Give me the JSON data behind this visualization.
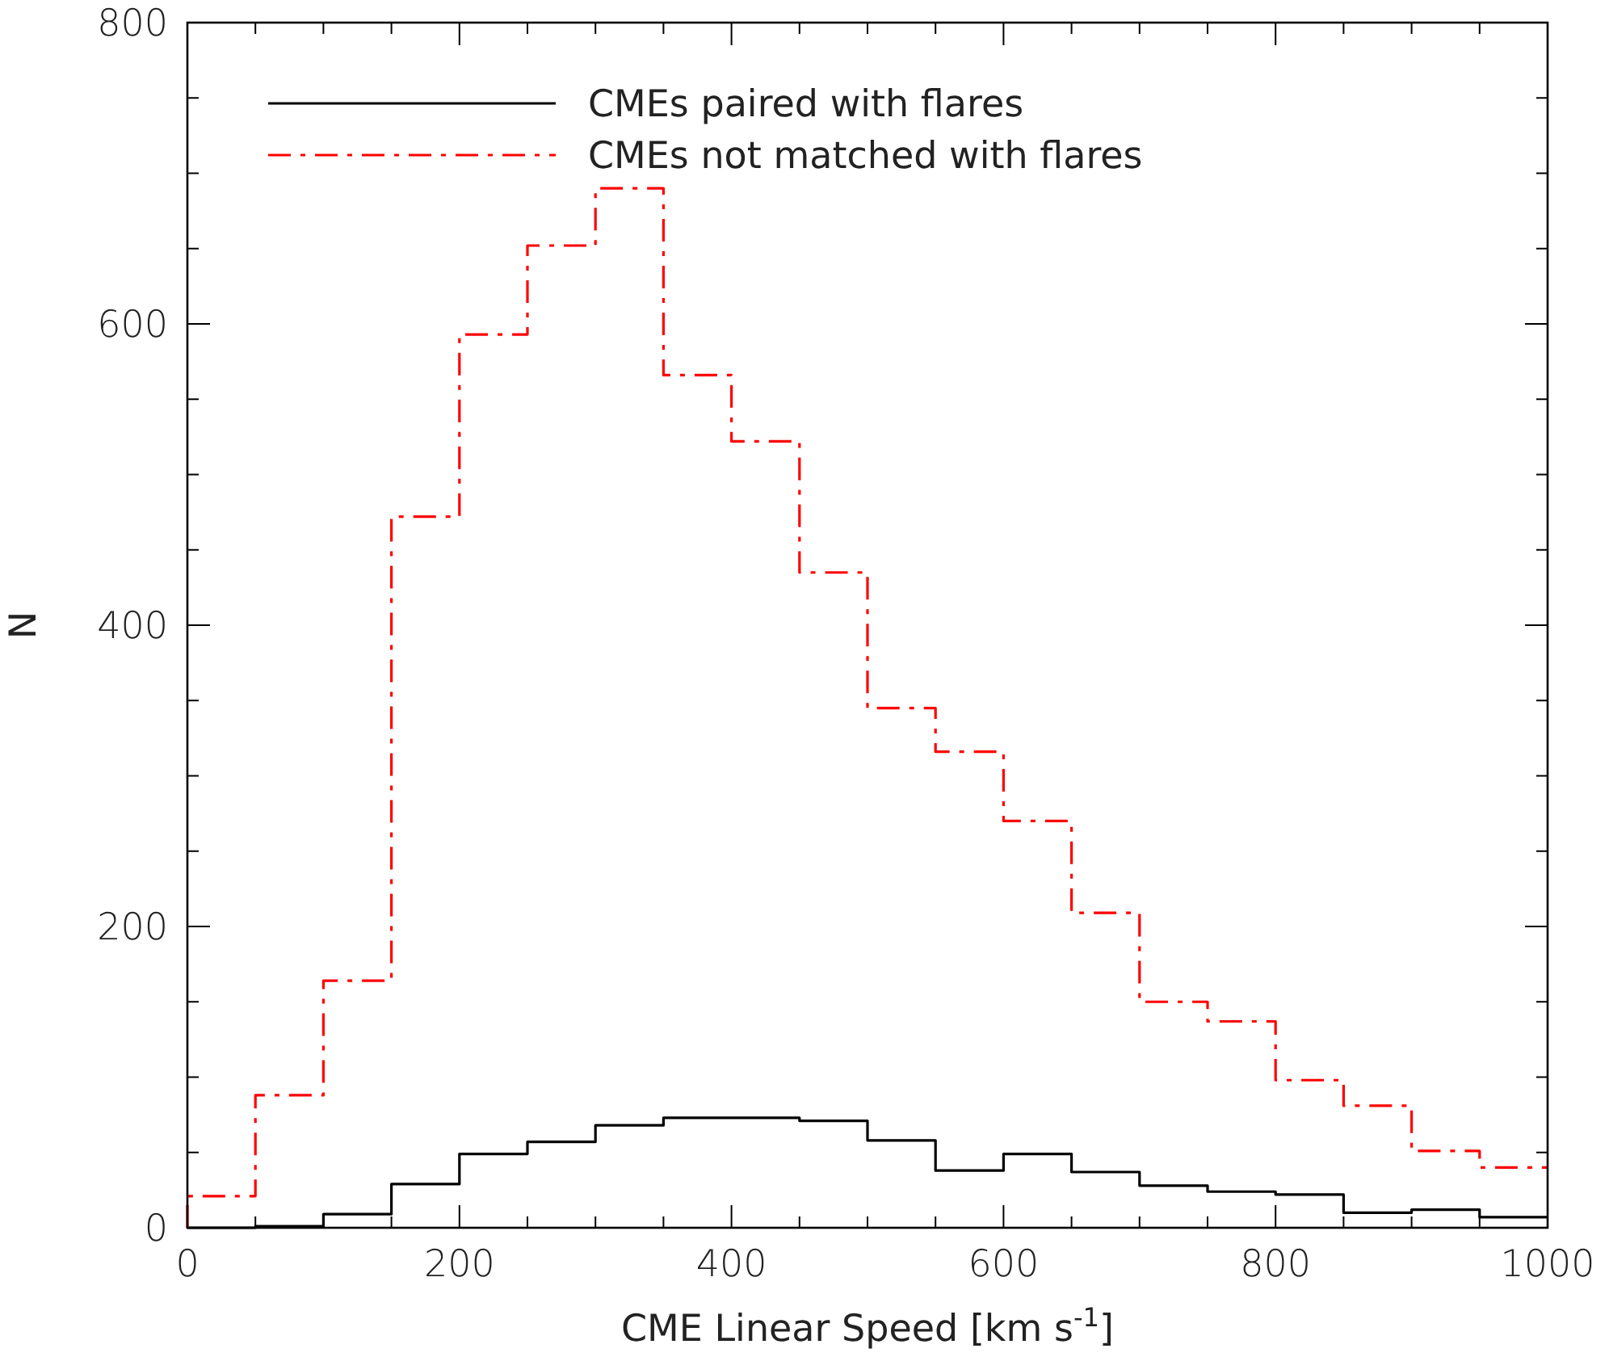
{
  "chart_data": {
    "type": "histogram",
    "xlabel": "CME Linear Speed [km s$^{-1}$]",
    "ylabel": "N",
    "bins": [
      0,
      50,
      100,
      150,
      200,
      250,
      300,
      350,
      400,
      450,
      500,
      550,
      600,
      650,
      700,
      750,
      800,
      850,
      900,
      950,
      1000
    ],
    "series": [
      {
        "name": "CMEs paired with flares",
        "color": "#000000",
        "line_style": "solid",
        "values": [
          0,
          1,
          9,
          29,
          49,
          57,
          68,
          73,
          73,
          71,
          58,
          38,
          49,
          37,
          28,
          24,
          22,
          10,
          12,
          7
        ]
      },
      {
        "name": "CMEs not matched with flares",
        "color": "#ff0000",
        "line_style": "dashed",
        "values": [
          21,
          88,
          164,
          472,
          593,
          652,
          690,
          566,
          522,
          435,
          345,
          316,
          270,
          209,
          150,
          137,
          98,
          81,
          51,
          40
        ]
      }
    ],
    "xlim": [
      0,
      1000
    ],
    "ylim": [
      0,
      800
    ],
    "xticks": [
      0,
      {
        "value": 50,
        "label": null
      },
      {
        "value": 100,
        "label": null
      },
      {
        "value": 150,
        "label": null
      },
      200,
      {
        "value": 250,
        "label": null
      },
      {
        "value": 300,
        "label": null
      },
      {
        "value": 350,
        "label": null
      },
      400,
      {
        "value": 450,
        "label": null
      },
      {
        "value": 500,
        "label": null
      },
      {
        "value": 550,
        "label": null
      },
      600,
      {
        "value": 650,
        "label": null
      },
      {
        "value": 700,
        "label": null
      },
      {
        "value": 750,
        "label": null
      },
      800,
      {
        "value": 850,
        "label": null
      },
      {
        "value": 900,
        "label": null
      },
      {
        "value": 950,
        "label": null
      },
      1000
    ],
    "yticks": [
      0,
      {
        "value": 50,
        "label": null
      },
      {
        "value": 100,
        "label": null
      },
      {
        "value": 150,
        "label": null
      },
      200,
      {
        "value": 250,
        "label": null
      },
      {
        "value": 300,
        "label": null
      },
      {
        "value": 350,
        "label": null
      },
      400,
      {
        "value": 450,
        "label": null
      },
      {
        "value": 500,
        "label": null
      },
      {
        "value": 550,
        "label": null
      },
      600,
      {
        "value": 650,
        "label": null
      },
      {
        "value": 700,
        "label": null
      },
      {
        "value": 750,
        "label": null
      },
      800
    ],
    "grid": false,
    "legend": "top left"
  }
}
